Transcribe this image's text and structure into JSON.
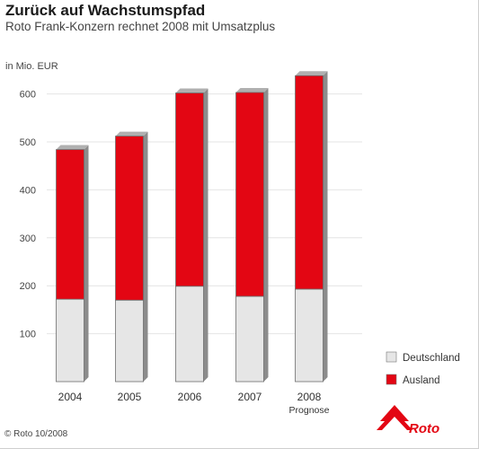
{
  "title": "Zurück auf Wachstumspfad",
  "subtitle": "Roto Frank-Konzern rechnet 2008 mit Umsatzplus",
  "copyright": "© Roto 10/2008",
  "logo_text": "Roto",
  "colors": {
    "deutschland": "#e6e6e6",
    "ausland": "#e30613",
    "grid": "#e4e4e4"
  },
  "chart_data": {
    "type": "bar",
    "stacked": true,
    "ylabel": "in Mio. EUR",
    "ylim": [
      0,
      650
    ],
    "yticks": [
      100,
      200,
      300,
      400,
      500,
      600
    ],
    "grid": true,
    "legend_position": "bottom-right",
    "categories": [
      "2004",
      "2005",
      "2006",
      "2007",
      "2008"
    ],
    "category_sublabels": [
      "",
      "",
      "",
      "",
      "Prognose"
    ],
    "series": [
      {
        "name": "Deutschland",
        "values": [
          172,
          170,
          199,
          178,
          193
        ]
      },
      {
        "name": "Ausland",
        "values": [
          312,
          342,
          403,
          425,
          445
        ]
      }
    ]
  }
}
